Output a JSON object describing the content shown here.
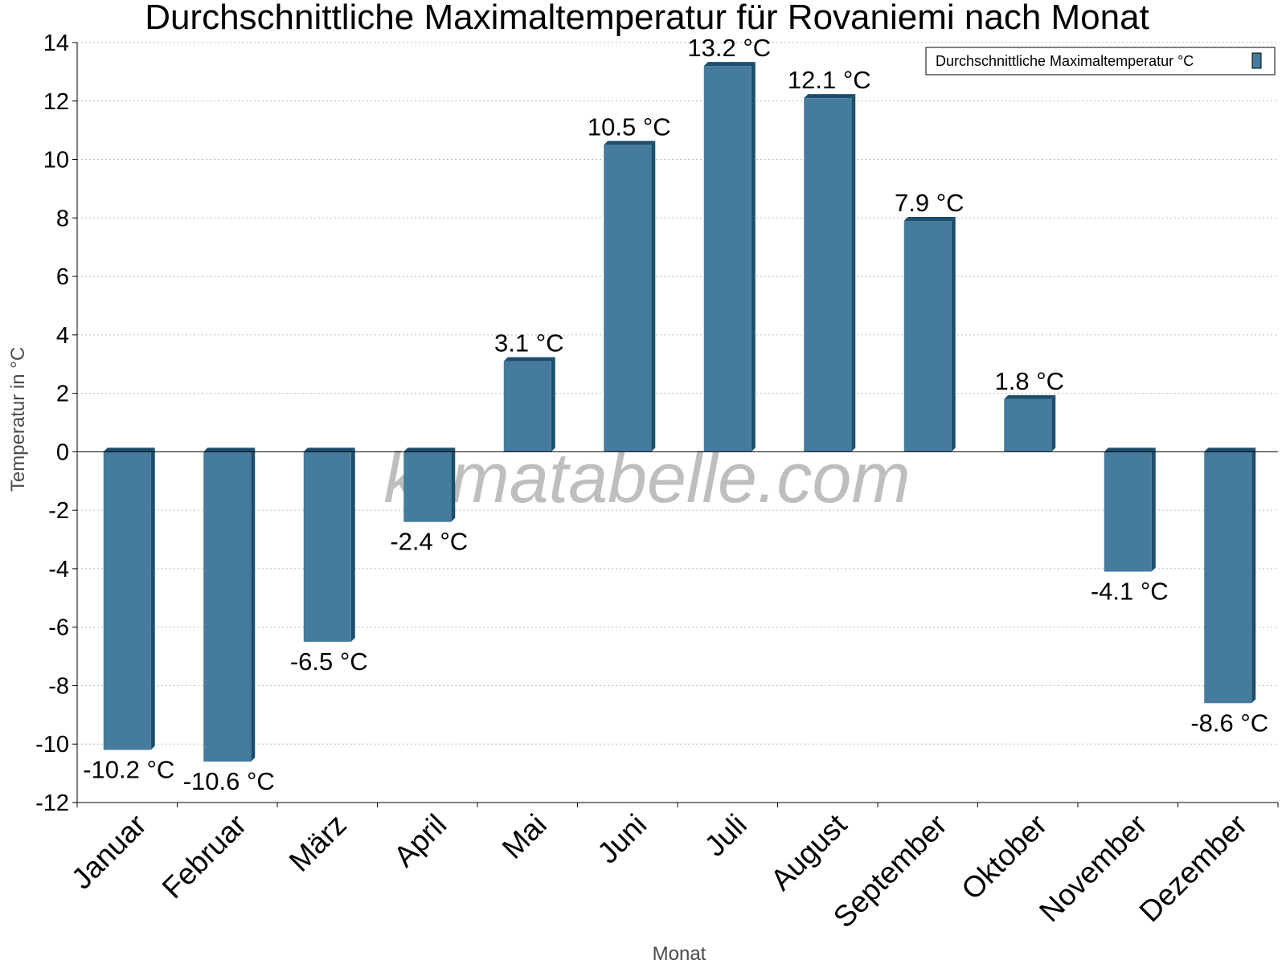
{
  "chart_data": {
    "type": "bar",
    "title": "Durchschnittliche Maximaltemperatur für Rovaniemi nach Monat",
    "xlabel": "Monat",
    "ylabel": "Temperatur in °C",
    "ylim": [
      -12,
      14
    ],
    "yticks": [
      14,
      12,
      10,
      8,
      6,
      4,
      2,
      0,
      -2,
      -4,
      -6,
      -8,
      -10,
      -12
    ],
    "grid": true,
    "legend_position": "top-right",
    "categories": [
      "Januar",
      "Februar",
      "März",
      "April",
      "Mai",
      "Juni",
      "Juli",
      "August",
      "September",
      "Oktober",
      "November",
      "Dezember"
    ],
    "series": [
      {
        "name": "Durchschnittliche Maximaltemperatur °C",
        "color": "#457b9d",
        "values": [
          -10.2,
          -10.6,
          -6.5,
          -2.4,
          3.1,
          10.5,
          13.2,
          12.1,
          7.9,
          1.8,
          -4.1,
          -8.6
        ],
        "labels": [
          "-10.2 °C",
          "-10.6 °C",
          "-6.5 °C",
          "-2.4 °C",
          "3.1 °C",
          "10.5 °C",
          "13.2 °C",
          "12.1 °C",
          "7.9 °C",
          "1.8 °C",
          "-4.1 °C",
          "-8.6 °C"
        ]
      }
    ],
    "watermark": "klimatabelle.com"
  }
}
